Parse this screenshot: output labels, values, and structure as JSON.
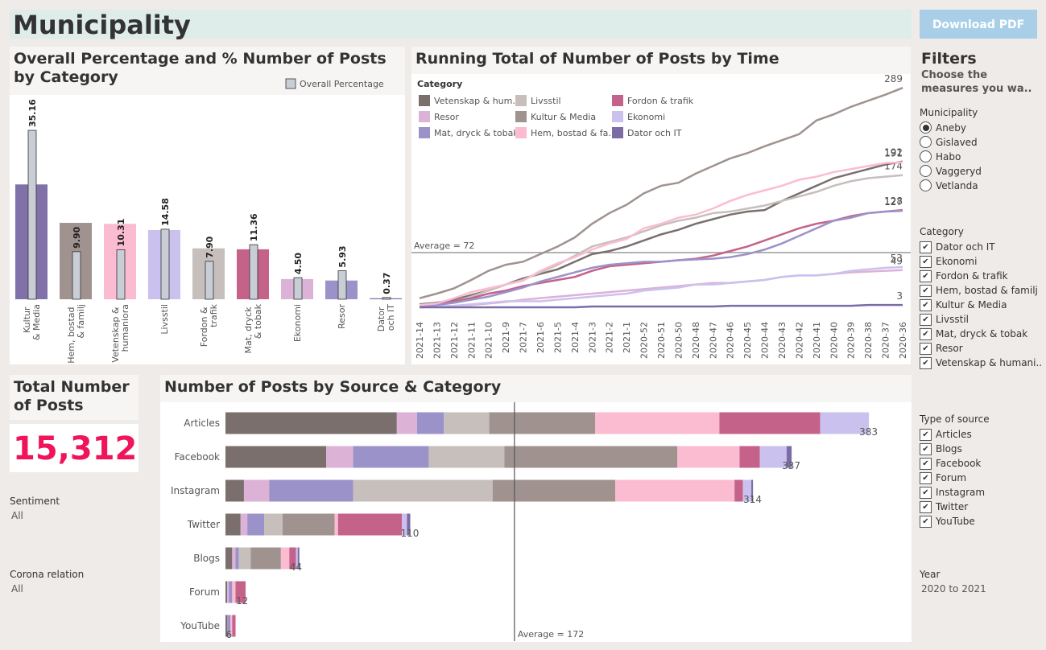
{
  "header": {
    "title": "Municipality",
    "button": "Download PDF"
  },
  "kpi": {
    "title": "Total Number of Posts",
    "value": {
      "value": 15312,
      "label": "15,312"
    }
  },
  "sentiment": {
    "label": "Sentiment",
    "value": "All"
  },
  "corona": {
    "label": "Corona relation",
    "value": "All"
  },
  "filters": {
    "title": "Filters",
    "subtitle": "Choose the measures you wa..",
    "municipality": {
      "label": "Municipality",
      "options": [
        "Aneby",
        "Gislaved",
        "Habo",
        "Vaggeryd",
        "Vetlanda"
      ],
      "selected": 0
    },
    "category": {
      "label": "Category",
      "options": [
        "Dator och IT",
        "Ekonomi",
        "Fordon & trafik",
        "Hem, bostad & familj",
        "Kultur & Media",
        "Livsstil",
        "Mat, dryck & tobak",
        "Resor",
        "Vetenskap & humani.."
      ]
    },
    "source": {
      "label": "Type of source",
      "options": [
        "Articles",
        "Blogs",
        "Facebook",
        "Forum",
        "Instagram",
        "Twitter",
        "YouTube"
      ]
    },
    "year": {
      "label": "Year",
      "value": "2020 to 2021"
    }
  },
  "chart_data": [
    {
      "type": "bar",
      "title": "Overall Percentage and % Number of Posts by Category",
      "categories": [
        "Kultur & Media",
        "Hem, bostad & familj",
        "Vetenskap & humaniora",
        "Livsstil",
        "Fordon & trafik",
        "Mat, dryck & tobak",
        "Ekonomi",
        "Resor",
        "Dator och IT"
      ],
      "ylim": [
        0,
        36
      ],
      "series": [
        {
          "colors": [
            "#8071a8",
            "#a0938f",
            "#fbbcd2",
            "#cbc1ef",
            "#c6bfbc",
            "#c5628a",
            "#dcb2d6",
            "#9c92ca",
            "#7c6ca6"
          ],
          "values": [
            23.9,
            15.9,
            15.7,
            14.4,
            10.6,
            10.4,
            4.2,
            3.9,
            0.2
          ]
        },
        {
          "name": "Overall Percentage",
          "color": "#c9cdd6",
          "values": [
            35.16,
            9.9,
            10.31,
            14.58,
            7.9,
            11.36,
            4.5,
            5.93,
            0.37
          ],
          "value_labels": [
            "35.16",
            "9.90",
            "10.31",
            "14.58",
            "7.90",
            "11.36",
            "4.50",
            "5.93",
            "0.37"
          ]
        }
      ]
    },
    {
      "type": "line",
      "title": "Running Total of Number of Posts by Time",
      "legend_title": "Category",
      "x": [
        "2021-14",
        "2021-13",
        "2021-12",
        "2021-11",
        "2021-10",
        "2021-9",
        "2021-7",
        "2021-6",
        "2021-5",
        "2021-4",
        "2021-3",
        "2021-2",
        "2021-1",
        "2020-52",
        "2020-51",
        "2020-50",
        "2020-48",
        "2020-47",
        "2020-46",
        "2020-45",
        "2020-44",
        "2020-43",
        "2020-42",
        "2020-41",
        "2020-40",
        "2020-39",
        "2020-38",
        "2020-37",
        "2020-36"
      ],
      "ylim": [
        0,
        304
      ],
      "reference_line": {
        "value": 72,
        "label": "Average = 72"
      },
      "series": [
        {
          "name": "Vetenskap & hum..",
          "color": "#7b6f6e",
          "values": [
            4,
            6,
            10,
            16,
            22,
            30,
            38,
            44,
            50,
            60,
            70,
            74,
            80,
            88,
            96,
            102,
            110,
            116,
            122,
            126,
            128,
            140,
            150,
            160,
            170,
            176,
            182,
            188,
            192
          ]
        },
        {
          "name": "Livsstil",
          "color": "#c6bfbc",
          "values": [
            2,
            4,
            8,
            14,
            22,
            30,
            36,
            46,
            56,
            68,
            80,
            86,
            92,
            100,
            108,
            114,
            118,
            124,
            126,
            130,
            134,
            140,
            146,
            152,
            160,
            166,
            170,
            172,
            174
          ]
        },
        {
          "name": "Fordon & trafik",
          "color": "#c5628a",
          "values": [
            2,
            4,
            8,
            12,
            18,
            22,
            28,
            32,
            36,
            40,
            48,
            54,
            56,
            58,
            60,
            62,
            64,
            68,
            74,
            80,
            88,
            96,
            104,
            110,
            114,
            120,
            124,
            126,
            128
          ]
        },
        {
          "name": "Resor",
          "color": "#dcb2d6",
          "values": [
            0,
            1,
            2,
            3,
            5,
            7,
            10,
            12,
            14,
            16,
            18,
            20,
            22,
            24,
            26,
            28,
            30,
            32,
            32,
            34,
            36,
            40,
            42,
            42,
            44,
            46,
            47,
            48,
            49
          ]
        },
        {
          "name": "Kultur & Media",
          "color": "#a0938f",
          "values": [
            12,
            18,
            25,
            36,
            48,
            56,
            60,
            70,
            80,
            92,
            110,
            124,
            135,
            150,
            160,
            164,
            176,
            186,
            196,
            203,
            212,
            220,
            228,
            246,
            254,
            264,
            272,
            280,
            289
          ]
        },
        {
          "name": "Ekonomi",
          "color": "#cbc1ef",
          "values": [
            0,
            1,
            2,
            4,
            6,
            8,
            8,
            8,
            10,
            12,
            14,
            16,
            18,
            22,
            24,
            26,
            30,
            30,
            32,
            34,
            36,
            40,
            42,
            42,
            44,
            48,
            50,
            52,
            53
          ]
        },
        {
          "name": "Mat, dryck & tobak",
          "color": "#9c92ca",
          "values": [
            1,
            3,
            6,
            10,
            14,
            20,
            26,
            34,
            40,
            46,
            52,
            56,
            58,
            60,
            60,
            62,
            63,
            64,
            66,
            70,
            76,
            84,
            94,
            104,
            114,
            118,
            124,
            126,
            127
          ]
        },
        {
          "name": "Hem, bostad & fa..",
          "color": "#fbbcd2",
          "values": [
            3,
            5,
            12,
            20,
            25,
            30,
            35,
            48,
            58,
            66,
            76,
            84,
            90,
            104,
            110,
            118,
            122,
            130,
            140,
            148,
            154,
            160,
            168,
            172,
            178,
            182,
            186,
            190,
            191
          ]
        },
        {
          "name": "Dator och IT",
          "color": "#7c6ca6",
          "values": [
            0,
            0,
            0,
            0,
            0,
            0,
            0,
            0,
            0,
            0,
            1,
            1,
            1,
            1,
            1,
            1,
            1,
            1,
            2,
            2,
            2,
            2,
            2,
            2,
            2,
            2,
            3,
            3,
            3
          ]
        }
      ]
    },
    {
      "type": "stacked_bar",
      "orientation": "horizontal",
      "title": "Number of Posts by Source & Category",
      "categories": [
        "Articles",
        "Facebook",
        "Instagram",
        "Twitter",
        "Blogs",
        "Forum",
        "YouTube"
      ],
      "xlim": [
        0,
        405
      ],
      "totals": [
        383,
        337,
        314,
        110,
        44,
        12,
        6
      ],
      "reference_line": {
        "value": 172,
        "label": "Average = 172"
      },
      "series": [
        {
          "color": "#7b6f6e",
          "values": [
            102,
            60,
            11,
            9,
            4,
            1,
            1
          ]
        },
        {
          "color": "#dcb2d6",
          "values": [
            12,
            16,
            15,
            4,
            2,
            1,
            0
          ]
        },
        {
          "color": "#9c92ca",
          "values": [
            16,
            45,
            50,
            10,
            2,
            2,
            2
          ]
        },
        {
          "color": "#c6bfbc",
          "values": [
            27,
            45,
            83,
            11,
            7,
            0,
            0
          ]
        },
        {
          "color": "#a0938f",
          "values": [
            63,
            103,
            73,
            31,
            18,
            0,
            0
          ]
        },
        {
          "color": "#fbbcd2",
          "values": [
            74,
            37,
            71,
            2,
            5,
            2,
            1
          ]
        },
        {
          "color": "#c5628a",
          "values": [
            60,
            12,
            5,
            38,
            4,
            6,
            2
          ]
        },
        {
          "color": "#cbc1ef",
          "values": [
            29,
            16,
            5,
            3,
            1,
            0,
            0
          ]
        },
        {
          "color": "#7c6ca6",
          "values": [
            0,
            3,
            1,
            2,
            1,
            0,
            0
          ]
        }
      ]
    }
  ]
}
